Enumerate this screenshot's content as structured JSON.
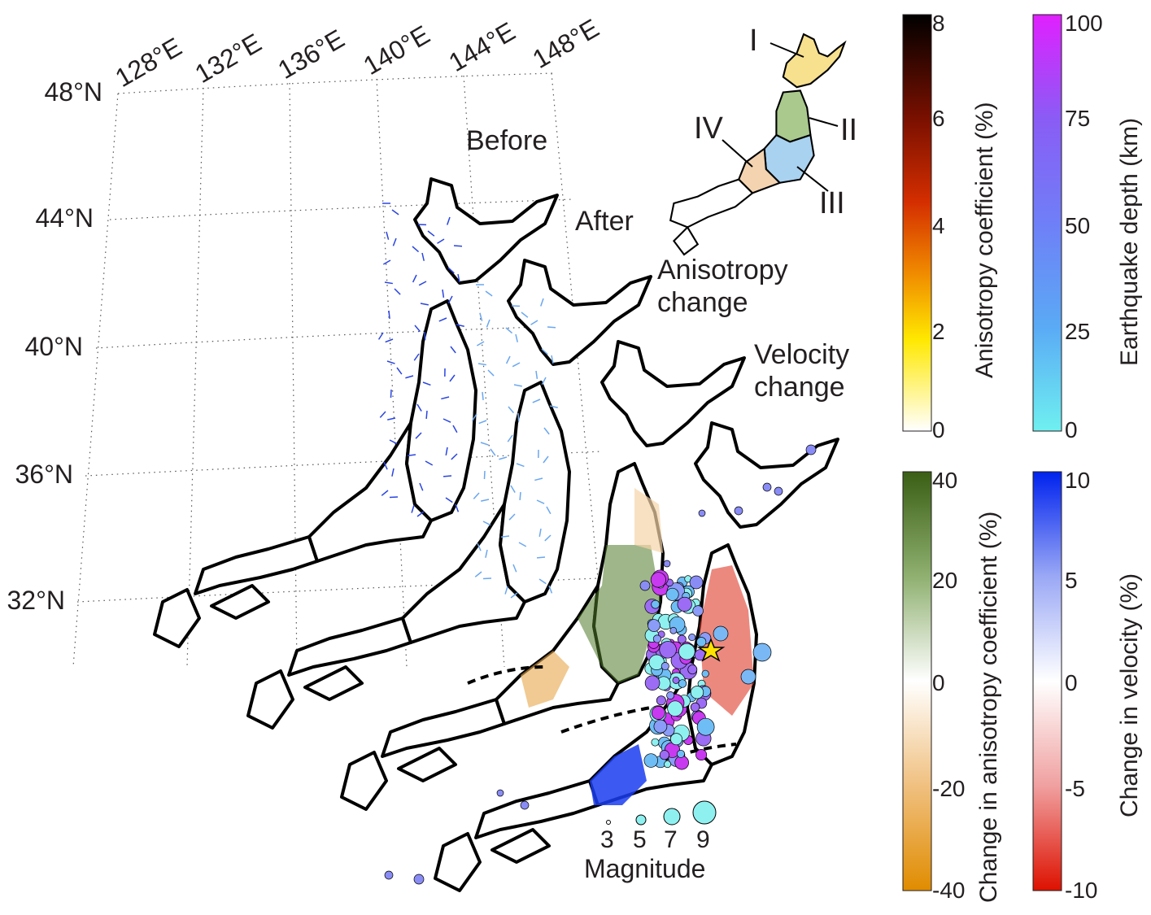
{
  "map": {
    "lon_labels": [
      "128°E",
      "132°E",
      "136°E",
      "140°E",
      "144°E",
      "148°E"
    ],
    "lat_labels": [
      "48°N",
      "44°N",
      "40°N",
      "36°N",
      "32°N"
    ],
    "panels": [
      {
        "title": "Before"
      },
      {
        "title": "After"
      },
      {
        "title": "Anisotropy change"
      },
      {
        "title": "Velocity change"
      }
    ],
    "region_labels": [
      "I",
      "II",
      "III",
      "IV"
    ],
    "region_colors": [
      "#f7e08e",
      "#a9c98d",
      "#a9d2f0",
      "#f3d3b0"
    ],
    "magnitude_legend": {
      "title": "Magnitude",
      "values": [
        "3",
        "5",
        "7",
        "9"
      ]
    },
    "mainshock_marker": "star-icon"
  },
  "colorbars": [
    {
      "label": "Anisotropy coefficient (%)",
      "ticks": [
        "8",
        "6",
        "4",
        "2",
        "0"
      ],
      "colors": [
        "#000000",
        "#7a1000",
        "#d42e00",
        "#f08a00",
        "#ffe800",
        "#ffffff"
      ]
    },
    {
      "label": "Earthquake depth (km)",
      "ticks": [
        "100",
        "75",
        "50",
        "25",
        "0"
      ],
      "colors": [
        "#e020ff",
        "#8a5cf5",
        "#6f7ff7",
        "#5aaaf5",
        "#6ff0f0"
      ]
    },
    {
      "label": "Change in anisotropy coefficient (%)",
      "ticks": [
        "40",
        "20",
        "0",
        "-20",
        "-40"
      ],
      "colors": [
        "#3a5e14",
        "#8fb070",
        "#ffffff",
        "#f0c080",
        "#e08c00"
      ]
    },
    {
      "label": "Change in velocity (%)",
      "ticks": [
        "10",
        "5",
        "0",
        "-5",
        "-10"
      ],
      "colors": [
        "#0022ee",
        "#9aa8f5",
        "#ffffff",
        "#f0a0a0",
        "#dd1100"
      ]
    }
  ]
}
